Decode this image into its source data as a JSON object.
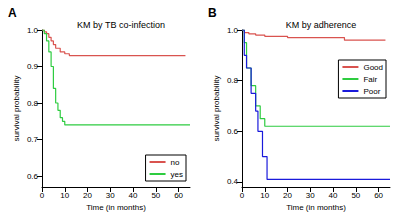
{
  "chart_data": [
    {
      "type": "line",
      "annotation": "A",
      "title": "KM by TB co-infection",
      "x_label": "Time (in months)",
      "y_label": "survival probability",
      "xlim": [
        0,
        65
      ],
      "xticks": [
        0,
        10,
        20,
        30,
        40,
        50,
        60
      ],
      "ylim": [
        0.57,
        1.0
      ],
      "yticks": [
        0.6,
        0.7,
        0.8,
        0.9,
        {
          "value": 1.0,
          "label": "1.0"
        }
      ],
      "grid": false,
      "legend": "lower right",
      "line_style": "solid",
      "series": [
        {
          "name": "no",
          "color": "#d9534f",
          "x": [
            0,
            1,
            2,
            3,
            4,
            5,
            6,
            8,
            10,
            12,
            63
          ],
          "values": [
            1.0,
            0.995,
            0.99,
            0.98,
            0.97,
            0.96,
            0.95,
            0.94,
            0.935,
            0.93,
            0.93
          ]
        },
        {
          "name": "yes",
          "color": "#2ecc40",
          "x": [
            0,
            1,
            2,
            3,
            4,
            5,
            6,
            7,
            8,
            9,
            10,
            65
          ],
          "values": [
            1.0,
            0.99,
            0.97,
            0.94,
            0.9,
            0.84,
            0.8,
            0.78,
            0.76,
            0.75,
            0.74,
            0.74
          ]
        }
      ]
    },
    {
      "type": "line",
      "annotation": "B",
      "title": "KM by adherence",
      "x_label": "Time (in months)",
      "y_label": "survival probability",
      "xlim": [
        0,
        65
      ],
      "xticks": [
        0,
        10,
        20,
        30,
        40,
        50,
        60
      ],
      "ylim": [
        0.38,
        1.0
      ],
      "yticks": [
        0.4,
        0.6,
        0.8,
        {
          "value": 1.0,
          "label": "1.0"
        }
      ],
      "grid": false,
      "legend": "upper right",
      "line_style": "solid",
      "series": [
        {
          "name": "Good",
          "color": "#d9534f",
          "x": [
            0,
            1,
            3,
            6,
            10,
            20,
            45,
            63
          ],
          "values": [
            1.0,
            0.99,
            0.985,
            0.98,
            0.975,
            0.97,
            0.96,
            0.96
          ]
        },
        {
          "name": "Fair",
          "color": "#2ecc40",
          "x": [
            0,
            1,
            2,
            4,
            6,
            8,
            10,
            12,
            65
          ],
          "values": [
            1.0,
            0.95,
            0.85,
            0.78,
            0.7,
            0.65,
            0.62,
            0.62,
            0.62
          ]
        },
        {
          "name": "Poor",
          "color": "#1a1adb",
          "x": [
            0,
            1,
            2,
            4,
            6,
            7,
            9,
            11,
            65
          ],
          "values": [
            1.0,
            0.9,
            0.85,
            0.75,
            0.68,
            0.6,
            0.5,
            0.41,
            0.41
          ]
        }
      ]
    }
  ]
}
